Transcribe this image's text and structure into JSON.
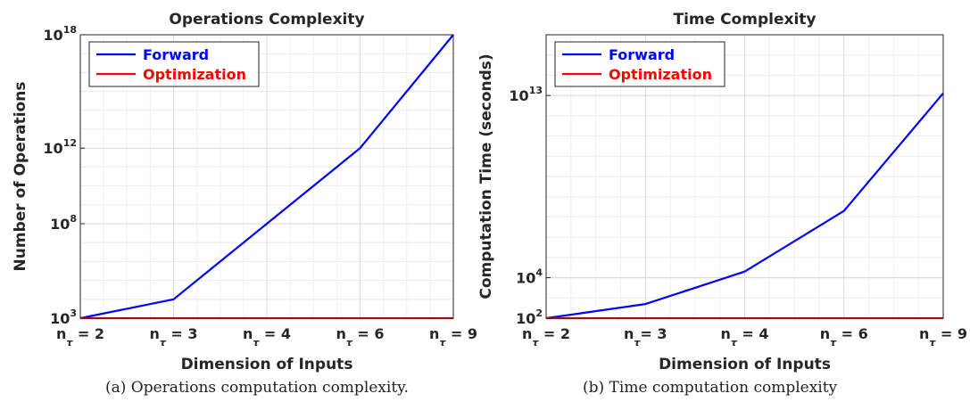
{
  "chart_data": [
    {
      "type": "line",
      "title": "Operations Complexity",
      "xlabel": "Dimension of Inputs",
      "ylabel": "Number of Operations",
      "yscale": "log",
      "ylim": [
        1000,
        1e+18
      ],
      "categories": [
        {
          "base": "n",
          "sub": "τ",
          "rest": " = 2"
        },
        {
          "base": "n",
          "sub": "τ",
          "rest": " = 3"
        },
        {
          "base": "n",
          "sub": "τ",
          "rest": " = 4"
        },
        {
          "base": "n",
          "sub": "τ",
          "rest": " = 6"
        },
        {
          "base": "n",
          "sub": "τ",
          "rest": " = 9"
        }
      ],
      "yticks": [
        {
          "base": "10",
          "exp": "3",
          "value": 1000
        },
        {
          "base": "10",
          "exp": "8",
          "value": 100000000.0
        },
        {
          "base": "10",
          "exp": "12",
          "value": 1000000000000.0
        },
        {
          "base": "10",
          "exp": "18",
          "value": 1e+18
        }
      ],
      "series": [
        {
          "name": "Forward",
          "color": "#0000ff",
          "values": [
            1000,
            10000,
            100000000.0,
            1000000000000.0,
            1e+18
          ]
        },
        {
          "name": "Optimization",
          "color": "#ff0000",
          "values": [
            1000,
            1000,
            1000,
            1000,
            1000
          ]
        }
      ],
      "grid": true,
      "legend": "top-left",
      "caption": "(a) Operations computation complexity."
    },
    {
      "type": "line",
      "title": "Time Complexity",
      "xlabel": "Dimension of Inputs",
      "ylabel": "Computation Time (seconds)",
      "yscale": "log",
      "ylim": [
        100,
        1e+16
      ],
      "categories": [
        {
          "base": "n",
          "sub": "τ",
          "rest": " = 2"
        },
        {
          "base": "n",
          "sub": "τ",
          "rest": "= 3"
        },
        {
          "base": "n",
          "sub": "τ",
          "rest": " = 4"
        },
        {
          "base": "n",
          "sub": "τ",
          "rest": " = 6"
        },
        {
          "base": "n",
          "sub": "τ",
          "rest": " = 9"
        }
      ],
      "yticks": [
        {
          "base": "10",
          "exp": "2",
          "value": 100
        },
        {
          "base": "10",
          "exp": "4",
          "value": 10000
        },
        {
          "base": "10",
          "exp": "13",
          "value": 10000000000000.0
        }
      ],
      "series": [
        {
          "name": "Forward",
          "color": "#0000ff",
          "values": [
            100,
            500,
            20000,
            20000000.0,
            13000000000000.0
          ]
        },
        {
          "name": "Optimization",
          "color": "#ff0000",
          "values": [
            100,
            100,
            100,
            100,
            100
          ]
        }
      ],
      "grid": true,
      "legend": "top-left",
      "caption": "(b) Time computation complexity"
    }
  ]
}
